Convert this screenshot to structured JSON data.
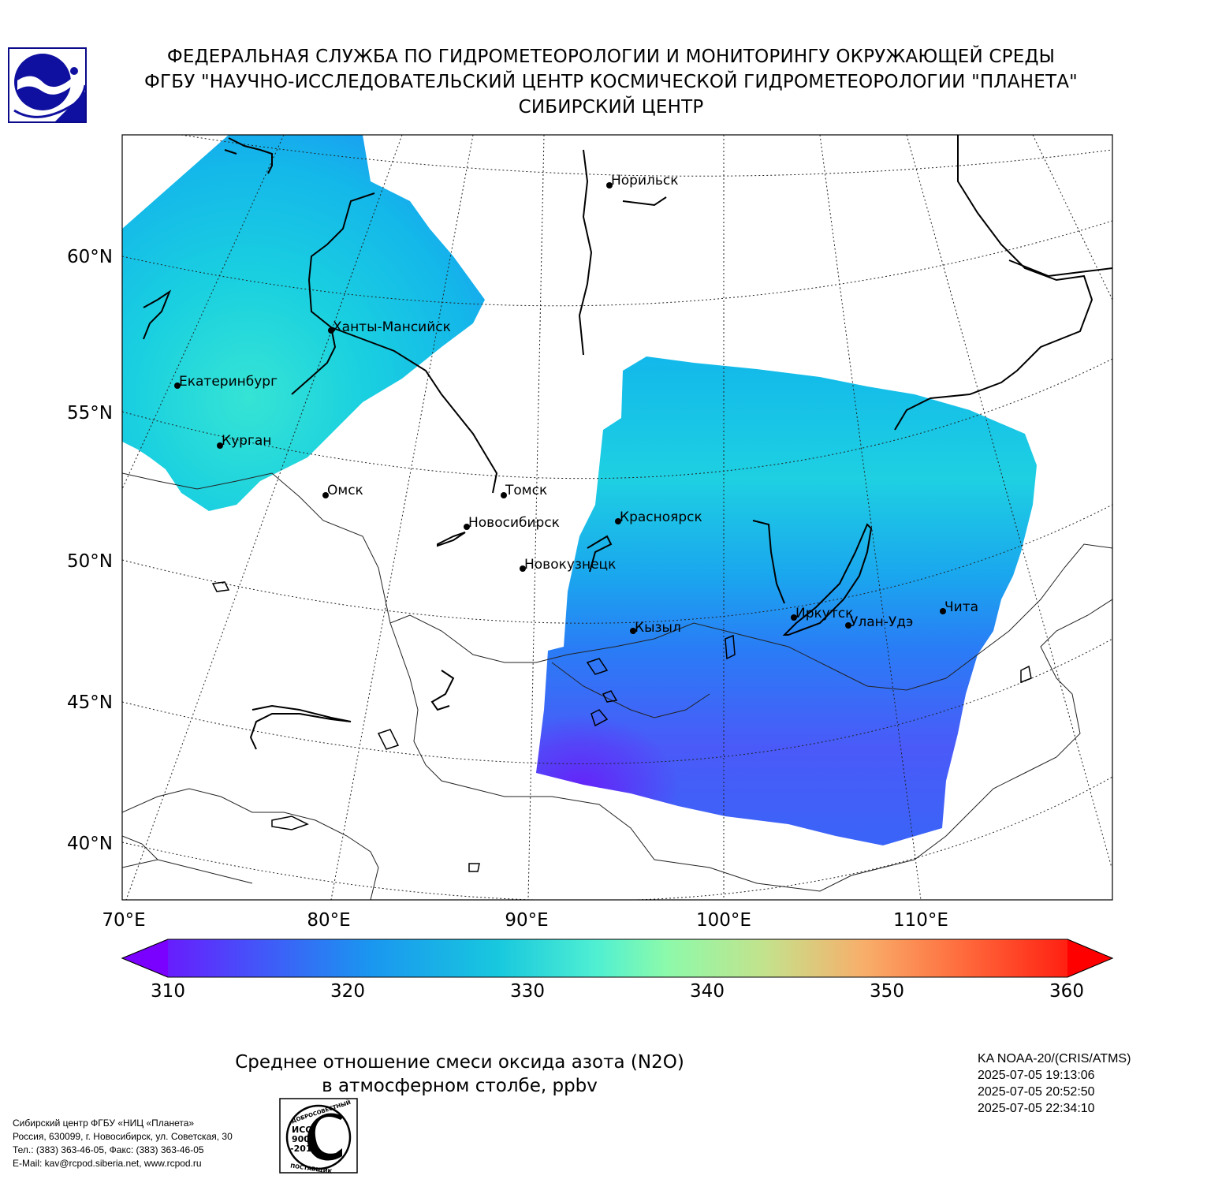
{
  "header": {
    "line1": "ФЕДЕРАЛЬНАЯ СЛУЖБА ПО ГИДРОМЕТЕОРОЛОГИИ И МОНИТОРИНГУ ОКРУЖАЮЩЕЙ СРЕДЫ",
    "line2": "ФГБУ \"НАУЧНО-ИССЛЕДОВАТЕЛЬСКИЙ ЦЕНТР КОСМИЧЕСКОЙ ГИДРОМЕТЕОРОЛОГИИ \"ПЛАНЕТА\"",
    "line3": "СИБИРСКИЙ ЦЕНТР"
  },
  "map": {
    "lat_labels": [
      "60°N",
      "55°N",
      "50°N",
      "45°N",
      "40°N"
    ],
    "lon_labels": [
      "70°E",
      "80°E",
      "90°E",
      "100°E",
      "110°E"
    ],
    "cities": [
      "Норильск",
      "Ханты-Мансийск",
      "Екатеринбург",
      "Курган",
      "Омск",
      "Томск",
      "Новосибирск",
      "Красноярск",
      "Новокузнецк",
      "Иркутск",
      "Улан-Удэ",
      "Чита",
      "Кызыл"
    ]
  },
  "colorbar": {
    "ticks": [
      "310",
      "320",
      "330",
      "340",
      "350",
      "360"
    ],
    "min": 310,
    "max": 360,
    "colormap": "rainbow"
  },
  "title": {
    "line1": "Среднее отношение смеси оксида азота (N2O)",
    "line2": "в атмосферном столбе, ppbv"
  },
  "satellite": {
    "name": "KA NOAA-20/(CRIS/ATMS)",
    "time1": "2025-07-05 19:13:06",
    "time2": "2025-07-05 20:52:50",
    "time3": "2025-07-05 22:34:10"
  },
  "contact": {
    "line1": "Сибирский центр ФГБУ «НИЦ «Планета»",
    "line2": "Россия, 630099, г. Новосибирск, ул. Советская, 30",
    "line3": "Тел.: (383) 363-46-05, Факс: (383) 363-46-05",
    "line4": "E-Mail: kav@rcpod.siberia.net, www.rcpod.ru"
  },
  "iso_stamp": {
    "top_text": "ДОБРОСОВЕСТНЫЙ",
    "middle_text": "ИСО 9001 -2015",
    "bottom_text": "ПОСТАВЩИК"
  }
}
